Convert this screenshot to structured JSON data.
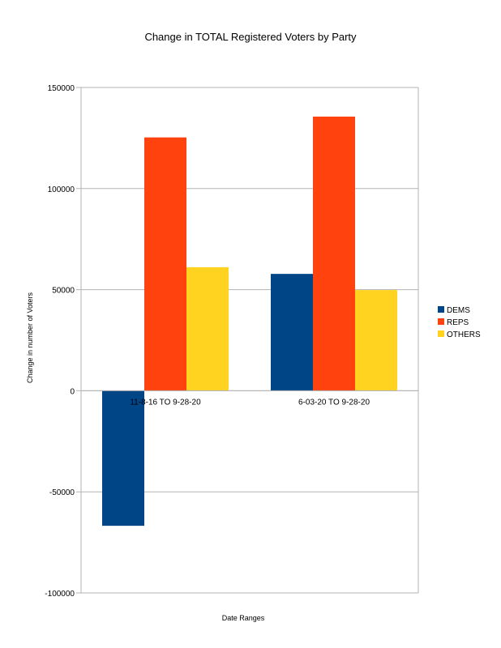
{
  "chart_data": {
    "type": "bar",
    "title": "Change in TOTAL Registered Voters by Party",
    "xlabel": "Date Ranges",
    "ylabel": "Change in number of Voters",
    "categories": [
      "11-8-16 TO 9-28-20",
      "6-03-20 TO 9-28-20"
    ],
    "series": [
      {
        "name": "DEMS",
        "color": "#004586",
        "values": [
          -66800,
          57800
        ]
      },
      {
        "name": "REPS",
        "color": "#ff420e",
        "values": [
          125300,
          135600
        ]
      },
      {
        "name": "OTHERS",
        "color": "#ffd320",
        "values": [
          61100,
          49800
        ]
      }
    ],
    "ylim": [
      -100000,
      150000
    ],
    "yticks": [
      150000,
      100000,
      50000,
      0,
      -50000,
      -100000
    ],
    "grid": true,
    "legend": "right"
  }
}
